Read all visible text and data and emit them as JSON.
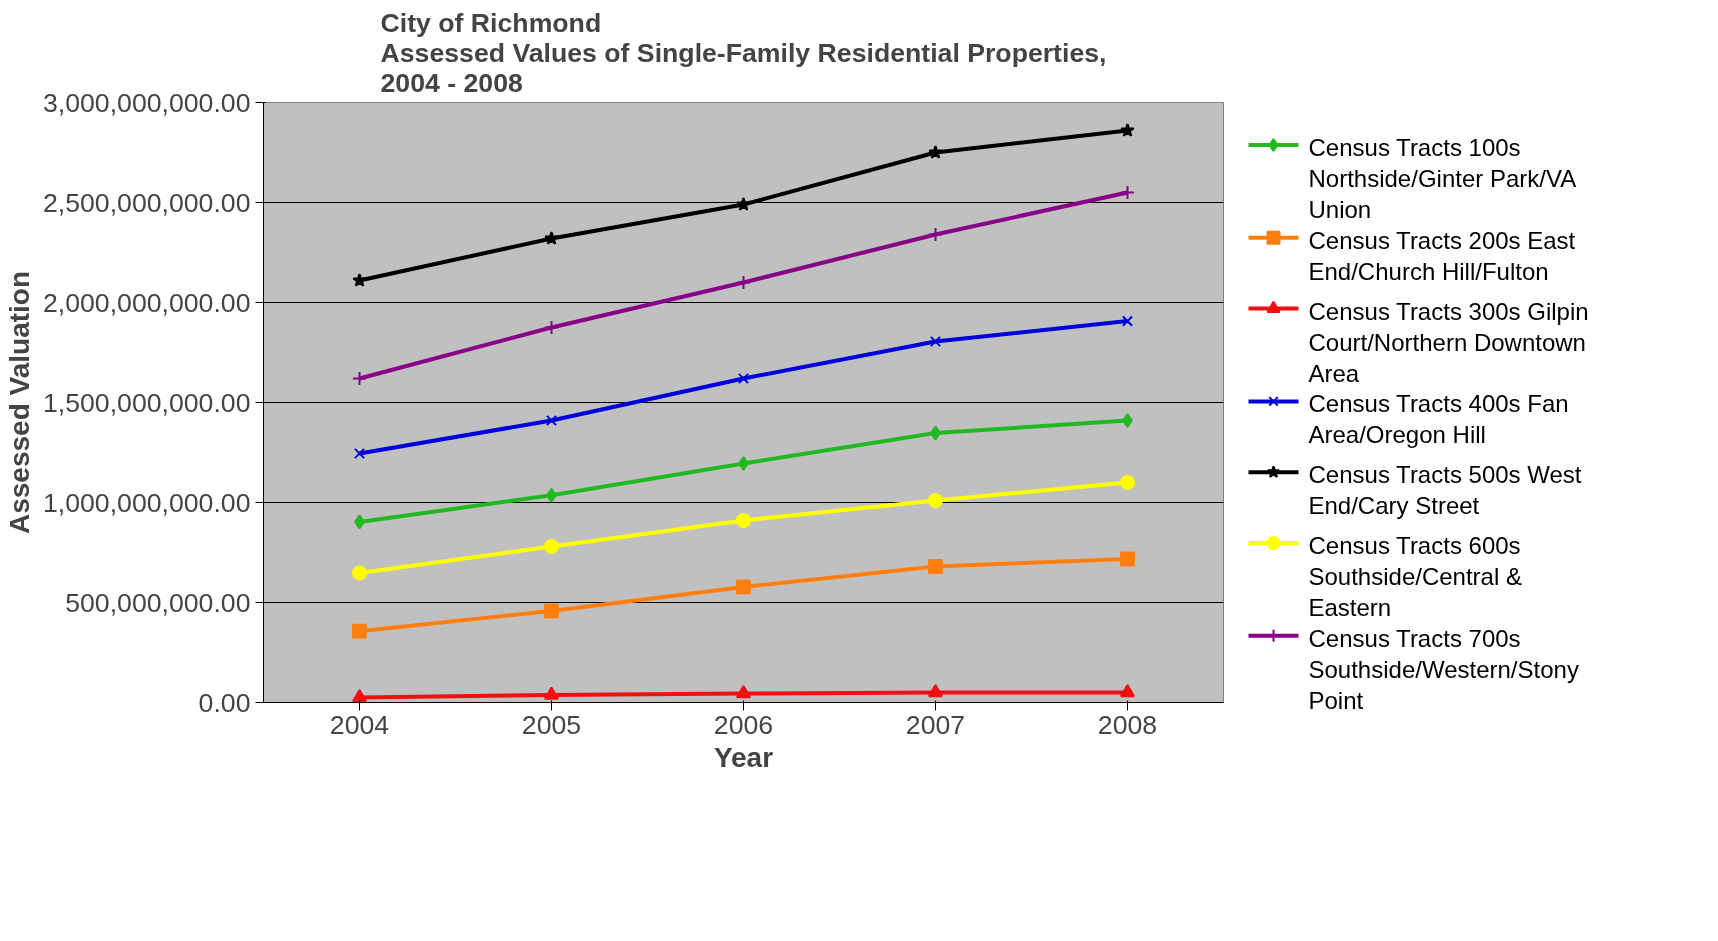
{
  "chart_data": {
    "type": "line",
    "title": "City of Richmond\nAssessed Values of Single-Family Residential Properties,\n2004 - 2008",
    "xlabel": "Year",
    "ylabel": "Assessed Valuation",
    "categories": [
      "2004",
      "2005",
      "2006",
      "2007",
      "2008"
    ],
    "ylim": [
      0,
      3000000000
    ],
    "yticks": [
      {
        "value": 0,
        "label": "0.00"
      },
      {
        "value": 500000000,
        "label": "500,000,000.00"
      },
      {
        "value": 1000000000,
        "label": "1,000,000,000.00"
      },
      {
        "value": 1500000000,
        "label": "1,500,000,000.00"
      },
      {
        "value": 2000000000,
        "label": "2,000,000,000.00"
      },
      {
        "value": 2500000000,
        "label": "2,500,000,000.00"
      },
      {
        "value": 3000000000,
        "label": "3,000,000,000.00"
      }
    ],
    "grid": "y",
    "legend": "right",
    "series": [
      {
        "name": "Census Tracts 100s Northside/Ginter Park/VA Union",
        "color": "#22b822",
        "marker": "diamond",
        "values": [
          903000000,
          1036000000,
          1195000000,
          1347000000,
          1410000000
        ]
      },
      {
        "name": "Census Tracts 200s East End/Church Hill/Fulton",
        "color": "#ff7f0e",
        "marker": "square",
        "values": [
          356000000,
          458000000,
          578000000,
          680000000,
          718000000
        ]
      },
      {
        "name": "Census Tracts 300s Gilpin Court/Northern Downtown Area",
        "color": "#ee1111",
        "marker": "triangle",
        "values": [
          25000000,
          38000000,
          45000000,
          50000000,
          50000000
        ]
      },
      {
        "name": "Census Tracts 400s Fan Area/Oregon Hill",
        "color": "#0000dd",
        "marker": "cross",
        "values": [
          1245000000,
          1410000000,
          1620000000,
          1805000000,
          1907000000
        ]
      },
      {
        "name": "Census Tracts 500s West End/Cary Street",
        "color": "#000000",
        "marker": "star",
        "values": [
          2110000000,
          2320000000,
          2490000000,
          2750000000,
          2860000000
        ]
      },
      {
        "name": "Census Tracts 600s Southside/Central & Eastern",
        "color": "#ffff00",
        "marker": "circle",
        "values": [
          648000000,
          780000000,
          910000000,
          1010000000,
          1100000000
        ]
      },
      {
        "name": "Census Tracts 700s Southside/Western/Stony Point",
        "color": "#880088",
        "marker": "plus",
        "values": [
          1620000000,
          1875000000,
          2100000000,
          2340000000,
          2550000000
        ]
      }
    ]
  }
}
